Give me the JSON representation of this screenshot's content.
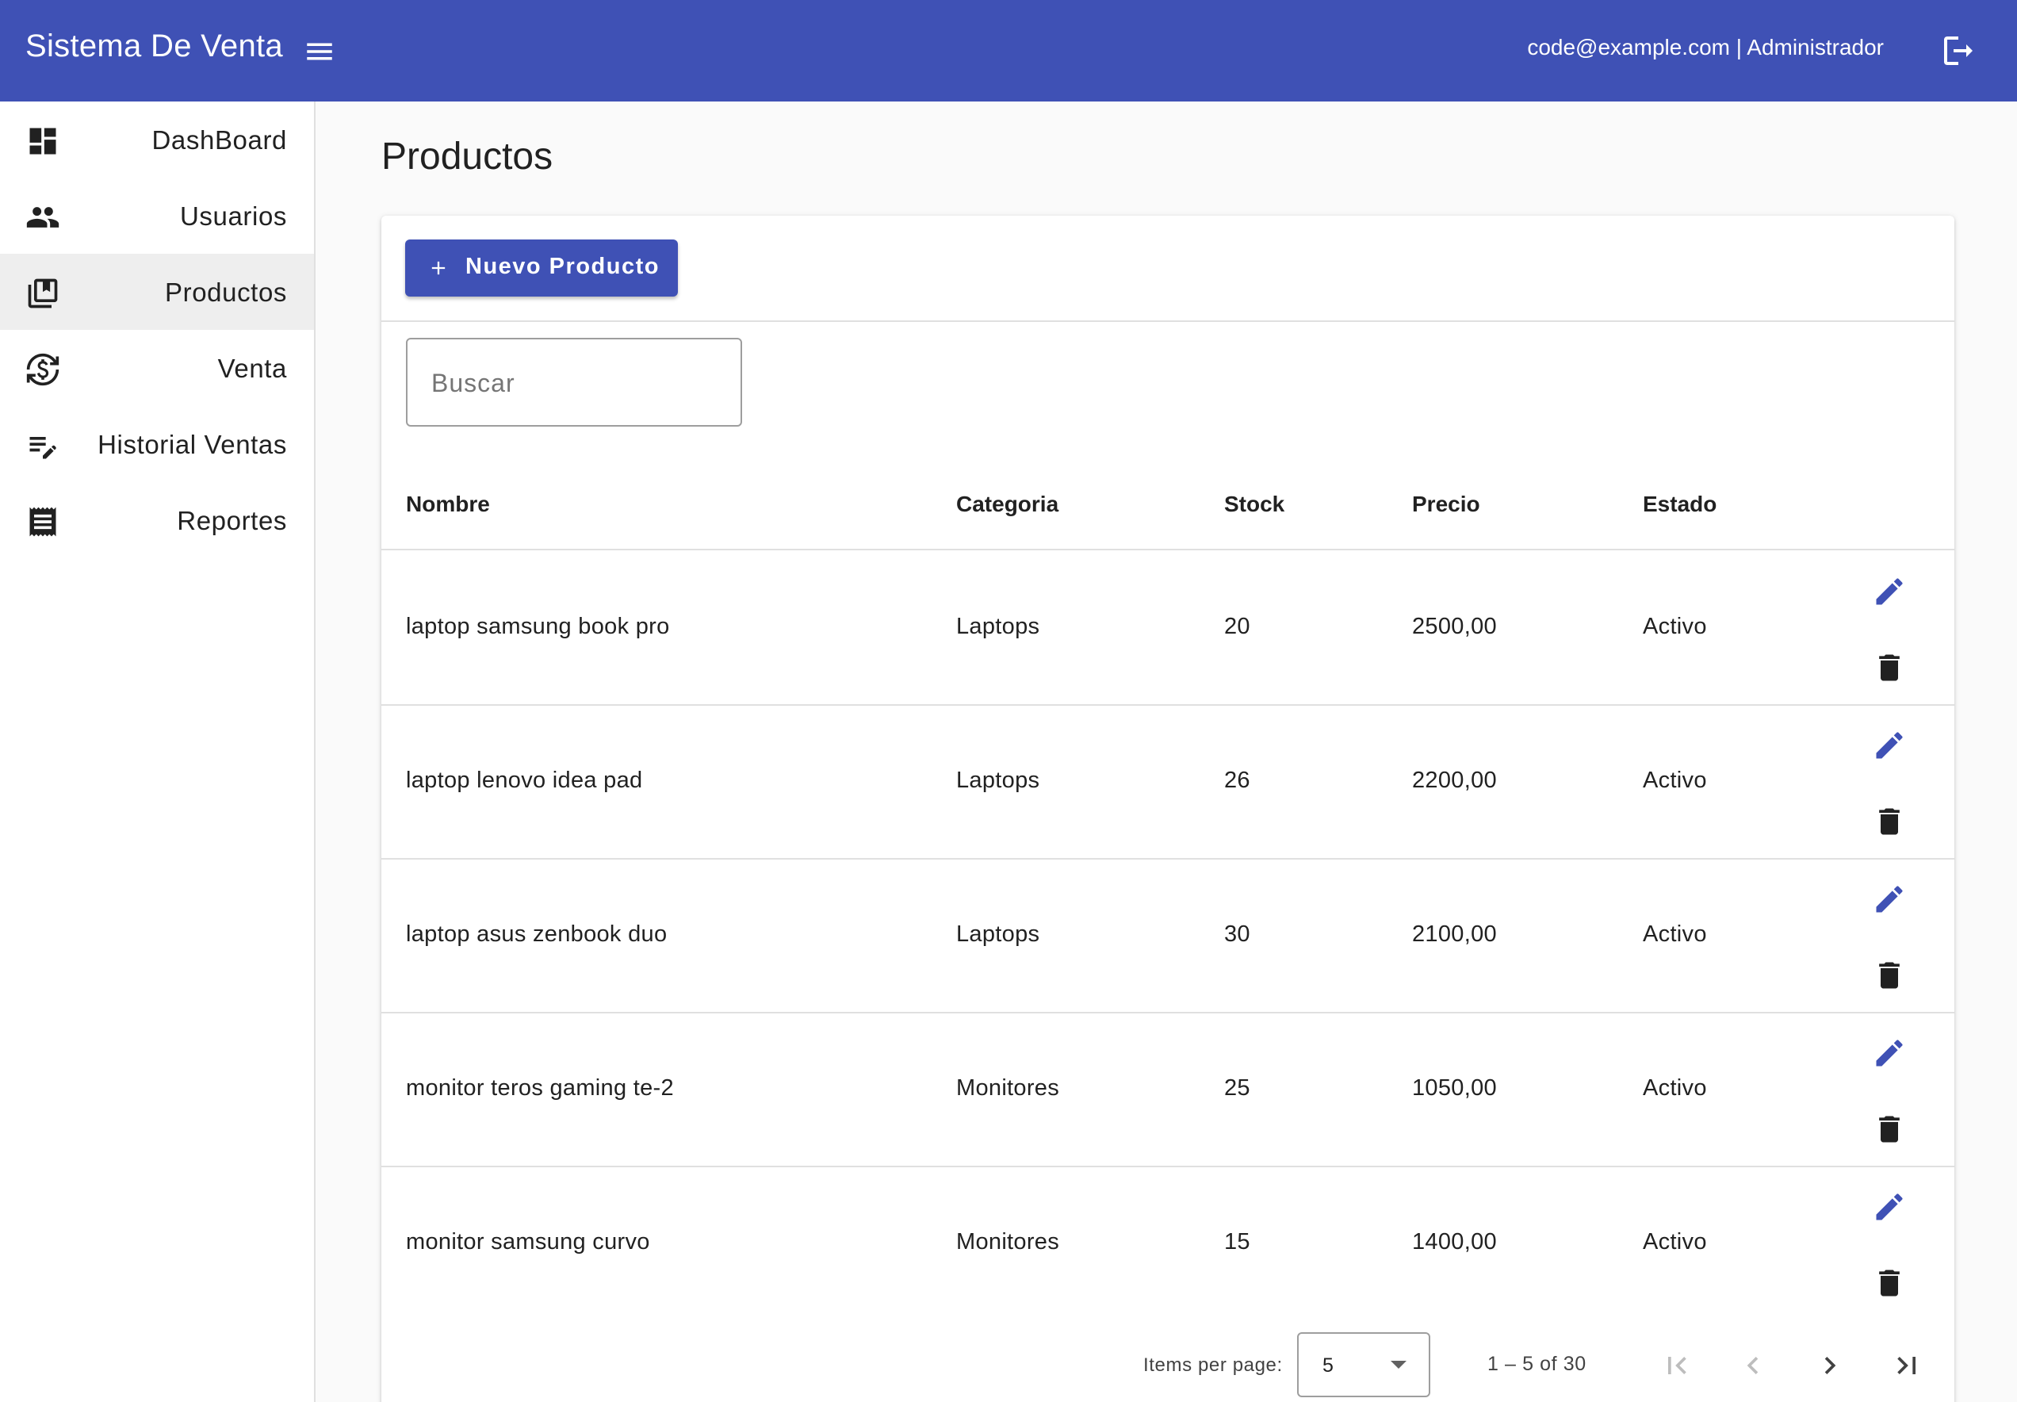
{
  "header": {
    "app_title": "Sistema De Venta",
    "user_info": "code@example.com | Administrador",
    "menu_icon": "hamburger-menu-icon",
    "logout_icon": "logout-icon",
    "color": "#3f51b5"
  },
  "sidebar": {
    "items": [
      {
        "label": "DashBoard",
        "icon": "dashboard-icon"
      },
      {
        "label": "Usuarios",
        "icon": "people-icon"
      },
      {
        "label": "Productos",
        "icon": "library-books-icon",
        "active": true
      },
      {
        "label": "Venta",
        "icon": "currency-exchange-icon"
      },
      {
        "label": "Historial Ventas",
        "icon": "edit-note-icon"
      },
      {
        "label": "Reportes",
        "icon": "receipt-icon"
      }
    ]
  },
  "main": {
    "title": "Productos",
    "new_button_label": "Nuevo Producto",
    "search_placeholder": "Buscar",
    "table": {
      "headers": {
        "nombre": "Nombre",
        "categoria": "Categoria",
        "stock": "Stock",
        "precio": "Precio",
        "estado": "Estado"
      },
      "rows": [
        {
          "nombre": "laptop samsung book pro",
          "categoria": "Laptops",
          "stock": "20",
          "precio": "2500,00",
          "estado": "Activo"
        },
        {
          "nombre": "laptop lenovo idea pad",
          "categoria": "Laptops",
          "stock": "26",
          "precio": "2200,00",
          "estado": "Activo"
        },
        {
          "nombre": "laptop asus zenbook duo",
          "categoria": "Laptops",
          "stock": "30",
          "precio": "2100,00",
          "estado": "Activo"
        },
        {
          "nombre": "monitor teros gaming te-2",
          "categoria": "Monitores",
          "stock": "25",
          "precio": "1050,00",
          "estado": "Activo"
        },
        {
          "nombre": "monitor samsung curvo",
          "categoria": "Monitores",
          "stock": "15",
          "precio": "1400,00",
          "estado": "Activo"
        }
      ]
    },
    "paginator": {
      "items_per_page_label": "Items per page:",
      "items_per_page_value": "5",
      "range_label": "1 – 5 of 30"
    }
  },
  "colors": {
    "primary": "#3f51b5",
    "delete_icon": "#212121",
    "active_nav_bg": "#eeeeee"
  }
}
